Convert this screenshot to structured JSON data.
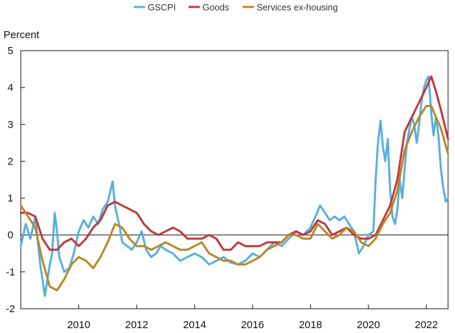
{
  "chart_data": {
    "type": "line",
    "title": "",
    "ylabel": "Percent",
    "xlabel": "",
    "xlim": [
      2008.0,
      2022.75
    ],
    "ylim": [
      -2,
      5
    ],
    "y_ticks": [
      -2,
      -1,
      0,
      1,
      2,
      3,
      4,
      5
    ],
    "x_ticks": [
      2010,
      2012,
      2014,
      2016,
      2018,
      2020,
      2022
    ],
    "reference_line": 0,
    "grid": false,
    "legend": "top-center",
    "series": [
      {
        "name": "GSCPI",
        "color": "#5aaede",
        "x": [
          2008.0,
          2008.17,
          2008.33,
          2008.5,
          2008.67,
          2008.83,
          2009.0,
          2009.08,
          2009.17,
          2009.25,
          2009.33,
          2009.5,
          2009.67,
          2009.83,
          2010.0,
          2010.17,
          2010.33,
          2010.5,
          2010.67,
          2010.83,
          2011.0,
          2011.17,
          2011.25,
          2011.33,
          2011.42,
          2011.5,
          2011.67,
          2011.83,
          2012.0,
          2012.17,
          2012.33,
          2012.5,
          2012.67,
          2012.83,
          2013.0,
          2013.25,
          2013.5,
          2013.75,
          2014.0,
          2014.25,
          2014.5,
          2014.75,
          2015.0,
          2015.25,
          2015.5,
          2015.75,
          2016.0,
          2016.25,
          2016.5,
          2016.75,
          2017.0,
          2017.25,
          2017.5,
          2017.75,
          2018.0,
          2018.17,
          2018.33,
          2018.5,
          2018.67,
          2018.83,
          2019.0,
          2019.17,
          2019.33,
          2019.5,
          2019.67,
          2019.83,
          2020.0,
          2020.17,
          2020.25,
          2020.33,
          2020.42,
          2020.5,
          2020.58,
          2020.67,
          2020.75,
          2020.83,
          2020.92,
          2021.0,
          2021.08,
          2021.17,
          2021.25,
          2021.33,
          2021.42,
          2021.5,
          2021.58,
          2021.67,
          2021.75,
          2021.83,
          2021.92,
          2022.0,
          2022.08,
          2022.17,
          2022.25,
          2022.33,
          2022.42,
          2022.5,
          2022.58,
          2022.67,
          2022.75
        ],
        "values": [
          -0.3,
          0.3,
          -0.1,
          0.5,
          -0.8,
          -1.65,
          -0.8,
          -0.5,
          0.6,
          0.1,
          -0.6,
          -1.0,
          -0.9,
          -0.5,
          0.1,
          0.4,
          0.2,
          0.5,
          0.3,
          0.7,
          0.9,
          1.45,
          0.8,
          0.5,
          0.2,
          -0.2,
          -0.3,
          -0.4,
          -0.2,
          0.1,
          -0.4,
          -0.6,
          -0.5,
          -0.3,
          -0.4,
          -0.5,
          -0.7,
          -0.6,
          -0.5,
          -0.6,
          -0.8,
          -0.7,
          -0.6,
          -0.75,
          -0.8,
          -0.7,
          -0.5,
          -0.6,
          -0.4,
          -0.2,
          -0.3,
          -0.1,
          0.1,
          0.0,
          0.2,
          0.5,
          0.8,
          0.6,
          0.4,
          0.5,
          0.4,
          0.5,
          0.3,
          0.1,
          -0.5,
          -0.3,
          0.0,
          0.1,
          1.5,
          2.5,
          3.1,
          2.4,
          2.0,
          2.6,
          1.2,
          0.5,
          0.3,
          0.7,
          1.5,
          1.0,
          1.8,
          2.5,
          2.9,
          3.2,
          3.0,
          2.5,
          3.0,
          3.6,
          4.0,
          4.2,
          4.3,
          3.3,
          2.7,
          3.2,
          2.7,
          1.8,
          1.3,
          0.9,
          1.0
        ]
      },
      {
        "name": "Goods",
        "color": "#c0393b",
        "x": [
          2008.0,
          2008.25,
          2008.5,
          2008.75,
          2009.0,
          2009.25,
          2009.5,
          2009.75,
          2010.0,
          2010.25,
          2010.5,
          2010.75,
          2011.0,
          2011.25,
          2011.5,
          2011.75,
          2012.0,
          2012.25,
          2012.5,
          2012.75,
          2013.0,
          2013.25,
          2013.5,
          2013.75,
          2014.0,
          2014.25,
          2014.5,
          2014.75,
          2015.0,
          2015.25,
          2015.5,
          2015.75,
          2016.0,
          2016.25,
          2016.5,
          2016.75,
          2017.0,
          2017.25,
          2017.5,
          2017.75,
          2018.0,
          2018.25,
          2018.5,
          2018.75,
          2019.0,
          2019.25,
          2019.5,
          2019.75,
          2020.0,
          2020.25,
          2020.5,
          2020.75,
          2021.0,
          2021.25,
          2021.5,
          2021.75,
          2022.0,
          2022.17,
          2022.33,
          2022.5,
          2022.75
        ],
        "values": [
          0.6,
          0.6,
          0.5,
          -0.1,
          -0.4,
          -0.4,
          -0.2,
          -0.1,
          -0.3,
          -0.1,
          0.2,
          0.4,
          0.8,
          0.9,
          0.8,
          0.7,
          0.6,
          0.3,
          0.1,
          0.0,
          0.1,
          0.2,
          0.1,
          -0.1,
          -0.1,
          -0.1,
          0.0,
          -0.1,
          -0.4,
          -0.4,
          -0.2,
          -0.3,
          -0.3,
          -0.3,
          -0.2,
          -0.2,
          -0.2,
          0.0,
          0.1,
          0.0,
          0.1,
          0.4,
          0.3,
          0.0,
          0.1,
          0.2,
          0.0,
          -0.1,
          -0.1,
          0.0,
          0.4,
          0.8,
          1.5,
          2.8,
          3.2,
          3.6,
          4.0,
          4.3,
          3.9,
          3.4,
          2.6
        ]
      },
      {
        "name": "Services ex-housing",
        "color": "#b8872a",
        "x": [
          2008.0,
          2008.25,
          2008.5,
          2008.75,
          2009.0,
          2009.25,
          2009.5,
          2009.75,
          2010.0,
          2010.25,
          2010.5,
          2010.75,
          2011.0,
          2011.25,
          2011.5,
          2011.75,
          2012.0,
          2012.25,
          2012.5,
          2012.75,
          2013.0,
          2013.25,
          2013.5,
          2013.75,
          2014.0,
          2014.25,
          2014.5,
          2014.75,
          2015.0,
          2015.25,
          2015.5,
          2015.75,
          2016.0,
          2016.25,
          2016.5,
          2016.75,
          2017.0,
          2017.25,
          2017.5,
          2017.75,
          2018.0,
          2018.25,
          2018.5,
          2018.75,
          2019.0,
          2019.25,
          2019.5,
          2019.75,
          2020.0,
          2020.25,
          2020.5,
          2020.75,
          2021.0,
          2021.25,
          2021.5,
          2021.75,
          2022.0,
          2022.17,
          2022.33,
          2022.5,
          2022.75
        ],
        "values": [
          0.8,
          0.5,
          0.2,
          -0.7,
          -1.4,
          -1.5,
          -1.2,
          -0.8,
          -0.6,
          -0.7,
          -0.9,
          -0.6,
          -0.2,
          0.3,
          0.2,
          -0.1,
          -0.3,
          -0.3,
          -0.4,
          -0.3,
          -0.2,
          -0.3,
          -0.4,
          -0.4,
          -0.3,
          -0.2,
          -0.5,
          -0.6,
          -0.7,
          -0.7,
          -0.8,
          -0.8,
          -0.7,
          -0.6,
          -0.4,
          -0.3,
          -0.2,
          0.0,
          0.0,
          -0.1,
          -0.1,
          0.3,
          0.1,
          -0.1,
          0.0,
          0.2,
          0.1,
          -0.2,
          -0.3,
          -0.1,
          0.3,
          0.6,
          1.2,
          2.3,
          2.8,
          3.2,
          3.5,
          3.5,
          3.2,
          2.9,
          2.2
        ]
      }
    ]
  }
}
